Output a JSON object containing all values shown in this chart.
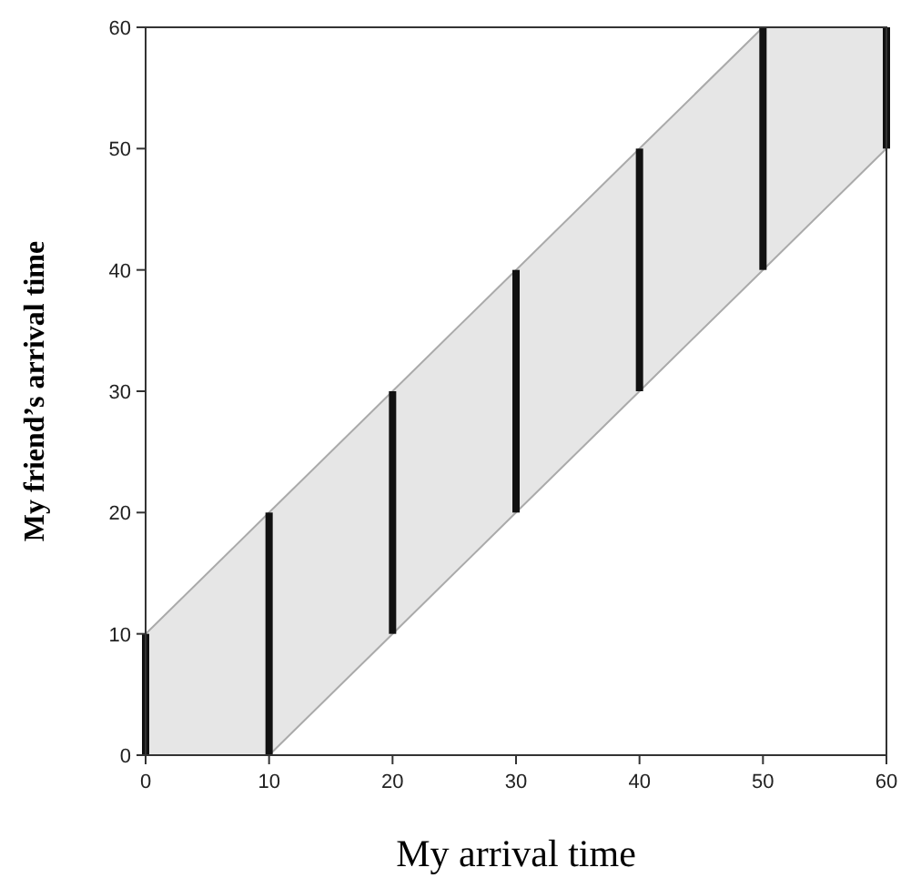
{
  "chart_data": {
    "type": "bar",
    "xlabel": "My arrival time",
    "ylabel": "My friend’s arrival time",
    "xlim": [
      0,
      60
    ],
    "xticks": [
      0,
      10,
      20,
      30,
      40,
      50,
      60
    ],
    "ylim": [
      0,
      60
    ],
    "yticks": [
      0,
      10,
      20,
      30,
      40,
      50,
      60
    ],
    "grid": false,
    "series": [
      {
        "type": "area",
        "color": "#e6e6e6",
        "x": [
          0,
          10,
          20,
          30,
          40,
          50,
          60
        ],
        "values": [
          10,
          20,
          30,
          40,
          50,
          60,
          60
        ]
      },
      {
        "type": "area",
        "color": "#ffffff",
        "x": [
          0,
          10,
          20,
          30,
          40,
          50,
          60
        ],
        "values": [
          0,
          0,
          10,
          20,
          30,
          40,
          50
        ]
      },
      {
        "color": "#111111",
        "x": [
          0,
          10,
          20,
          30,
          40,
          50,
          60
        ],
        "base": [
          0,
          0,
          10,
          20,
          30,
          40,
          50
        ],
        "values": [
          10,
          20,
          20,
          20,
          20,
          20,
          10
        ]
      }
    ]
  }
}
